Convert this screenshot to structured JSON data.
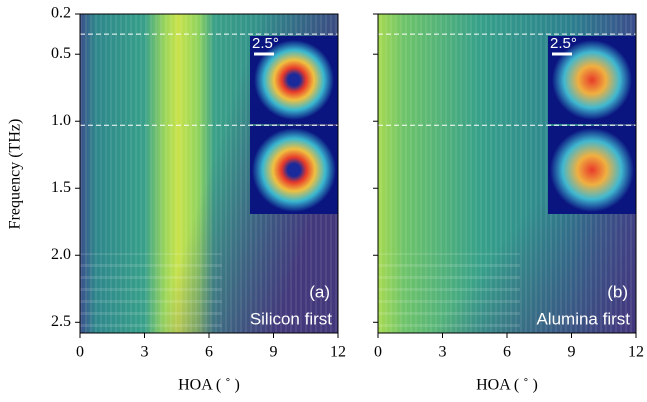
{
  "chart_data": [
    {
      "type": "heatmap",
      "xlabel": "HOA ( ˚ )",
      "ylabel": "Frequency (THz)",
      "xlim": [
        0,
        12
      ],
      "xticks": [
        0,
        3,
        6,
        9,
        12
      ],
      "ylim": [
        0.2,
        2.58
      ],
      "yticks": [
        0.2,
        0.5,
        {
          "value": 1.0,
          "label": "1.0"
        },
        1.5,
        {
          "value": 2.0,
          "label": "2.0"
        },
        2.5
      ],
      "hlines": [
        0.35,
        1.03
      ],
      "panel_label": "(a)",
      "annotation": "Silicon first",
      "scale_bar_label": "2.5°"
    },
    {
      "type": "heatmap",
      "xlabel": "HOA ( ˚ )",
      "xlim": [
        0,
        12
      ],
      "xticks": [
        0,
        3,
        6,
        9,
        12
      ],
      "ylim": [
        0.2,
        2.58
      ],
      "yticks": [
        0.2,
        0.5,
        1.0,
        1.5,
        2.0,
        2.5
      ],
      "hlines": [
        0.35,
        1.03
      ],
      "panel_label": "(b)",
      "annotation": "Alumina first",
      "scale_bar_label": "2.5°"
    }
  ]
}
